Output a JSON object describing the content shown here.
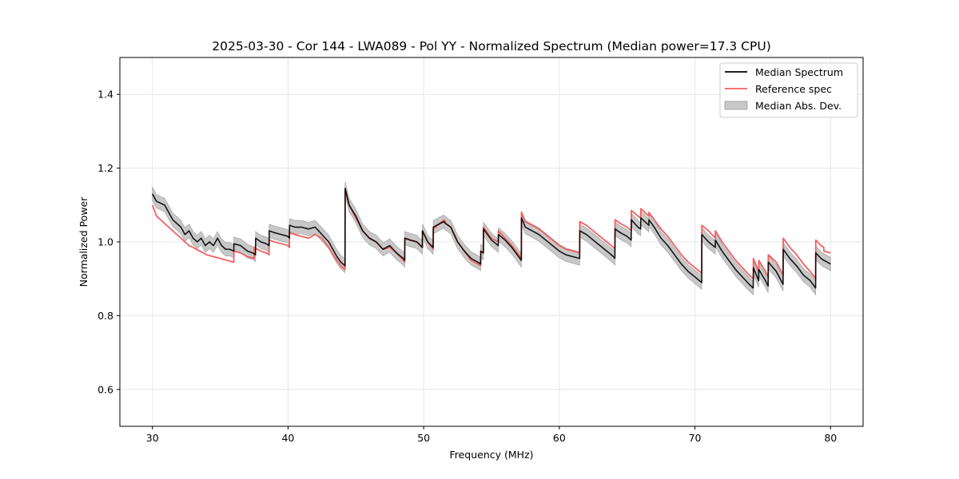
{
  "chart_data": {
    "type": "line",
    "title": "2025-03-30 - Cor 144 - LWA089 - Pol YY - Normalized Spectrum (Median power=17.3 CPU)",
    "xlabel": "Frequency (MHz)",
    "ylabel": "Normalized Power",
    "xlim": [
      27.6,
      82.4
    ],
    "ylim": [
      0.5,
      1.5
    ],
    "xticks": [
      30,
      40,
      50,
      60,
      70,
      80
    ],
    "xtick_labels": [
      "30",
      "40",
      "50",
      "60",
      "70",
      "80"
    ],
    "yticks": [
      0.6,
      0.8,
      1.0,
      1.2,
      1.4
    ],
    "ytick_labels": [
      "0.6",
      "0.8",
      "1.0",
      "1.2",
      "1.4"
    ],
    "grid": true,
    "legend_position": "top-right",
    "legend": [
      "Median Spectrum",
      "Reference spec",
      "Median Abs. Dev."
    ],
    "colors": {
      "median": "#000000",
      "reference": "#f26060",
      "mad_fill": "#c8c8c8",
      "mad_edge": "#a8a8a8",
      "grid": "#e6e6e6"
    },
    "series": [
      {
        "name": "Median Spectrum",
        "x": [
          30.0,
          30.3,
          30.6,
          30.9,
          31.2,
          31.5,
          31.8,
          32.1,
          32.4,
          32.7,
          33.0,
          33.3,
          33.6,
          33.9,
          34.2,
          34.5,
          34.8,
          35.1,
          35.4,
          35.7,
          36.0,
          36.01,
          36.5,
          37.0,
          37.4,
          37.6,
          37.61,
          38.0,
          38.4,
          38.6,
          38.61,
          39.0,
          39.5,
          40.0,
          40.1,
          40.11,
          40.5,
          41.0,
          41.5,
          42.0,
          42.5,
          43.0,
          43.3,
          43.6,
          43.9,
          44.2,
          44.21,
          44.5,
          45.0,
          45.5,
          46.0,
          46.5,
          47.0,
          47.5,
          48.0,
          48.5,
          48.6,
          48.61,
          49.0,
          49.5,
          49.9,
          49.91,
          50.3,
          50.7,
          50.71,
          51.2,
          51.5,
          51.6,
          51.61,
          52.0,
          52.5,
          53.0,
          53.5,
          54.0,
          54.2,
          54.21,
          54.4,
          54.41,
          55.0,
          55.5,
          55.51,
          56.0,
          56.5,
          57.0,
          57.2,
          57.21,
          57.5,
          58.0,
          58.5,
          59.0,
          59.5,
          60.0,
          60.5,
          61.0,
          61.5,
          61.51,
          62.0,
          62.5,
          63.0,
          63.5,
          64.0,
          64.1,
          64.11,
          64.5,
          65.0,
          65.3,
          65.31,
          65.8,
          66.0,
          66.01,
          66.6,
          66.61,
          67.0,
          67.5,
          68.0,
          68.5,
          69.0,
          69.5,
          70.0,
          70.5,
          70.51,
          71.0,
          71.5,
          71.51,
          72.0,
          72.5,
          73.0,
          73.5,
          74.0,
          74.3,
          74.31,
          74.7,
          74.71,
          75.2,
          75.4,
          75.41,
          76.0,
          76.5,
          76.51,
          77.0,
          77.5,
          78.0,
          78.5,
          78.9,
          78.91,
          79.3,
          79.5,
          79.51,
          80.0
        ],
        "values": [
          1.13,
          1.11,
          1.105,
          1.1,
          1.08,
          1.06,
          1.05,
          1.04,
          1.02,
          1.03,
          1.01,
          1.0,
          1.01,
          0.99,
          1.0,
          0.99,
          1.01,
          0.99,
          0.98,
          0.98,
          0.975,
          0.995,
          0.99,
          0.975,
          0.97,
          0.965,
          1.01,
          1.0,
          0.995,
          0.99,
          1.03,
          1.025,
          1.02,
          1.015,
          1.01,
          1.045,
          1.04,
          1.04,
          1.035,
          1.04,
          1.02,
          1.0,
          0.98,
          0.96,
          0.945,
          0.935,
          1.145,
          1.1,
          1.07,
          1.03,
          1.01,
          1.0,
          0.98,
          0.99,
          0.97,
          0.955,
          0.95,
          1.01,
          1.005,
          1.0,
          0.985,
          1.03,
          1.0,
          0.985,
          1.04,
          1.05,
          1.055,
          1.05,
          1.05,
          1.04,
          1.0,
          0.975,
          0.955,
          0.945,
          0.94,
          0.975,
          0.97,
          1.035,
          1.005,
          0.99,
          1.02,
          1.005,
          0.985,
          0.96,
          0.95,
          1.065,
          1.04,
          1.03,
          1.02,
          1.005,
          0.99,
          0.975,
          0.965,
          0.96,
          0.955,
          1.03,
          1.02,
          1.005,
          0.99,
          0.975,
          0.96,
          0.955,
          1.035,
          1.025,
          1.015,
          1.005,
          1.06,
          1.04,
          1.035,
          1.065,
          1.045,
          1.06,
          1.04,
          1.01,
          0.99,
          0.965,
          0.94,
          0.92,
          0.905,
          0.89,
          1.02,
          1.0,
          0.985,
          1.005,
          0.975,
          0.95,
          0.925,
          0.905,
          0.885,
          0.875,
          0.93,
          0.895,
          0.925,
          0.895,
          0.88,
          0.945,
          0.92,
          0.885,
          0.98,
          0.955,
          0.935,
          0.91,
          0.895,
          0.875,
          0.97,
          0.955,
          0.95,
          0.95,
          0.94
        ]
      },
      {
        "name": "Reference spec",
        "x": [
          30.0,
          30.3,
          30.6,
          30.9,
          31.2,
          31.5,
          31.8,
          32.1,
          32.4,
          32.7,
          33.0,
          33.5,
          34.0,
          34.5,
          35.0,
          35.5,
          36.0,
          36.01,
          36.5,
          37.0,
          37.5,
          37.51,
          38.0,
          38.4,
          38.6,
          38.61,
          39.0,
          39.5,
          40.0,
          40.1,
          40.11,
          40.5,
          41.0,
          41.5,
          42.0,
          42.5,
          43.0,
          43.3,
          43.6,
          43.9,
          44.2,
          44.21,
          44.5,
          45.0,
          45.5,
          46.0,
          46.5,
          47.0,
          47.5,
          48.0,
          48.5,
          48.6,
          48.61,
          49.0,
          49.5,
          49.9,
          49.91,
          50.3,
          50.7,
          50.71,
          51.2,
          51.5,
          51.6,
          51.61,
          52.0,
          52.5,
          53.0,
          53.5,
          54.0,
          54.2,
          54.21,
          54.4,
          54.41,
          55.0,
          55.5,
          55.51,
          56.0,
          56.5,
          57.0,
          57.2,
          57.21,
          57.5,
          58.0,
          58.5,
          59.0,
          59.5,
          60.0,
          60.5,
          61.0,
          61.5,
          61.51,
          62.0,
          62.5,
          63.0,
          63.5,
          64.0,
          64.1,
          64.11,
          64.5,
          65.0,
          65.3,
          65.31,
          65.8,
          66.0,
          66.01,
          66.6,
          66.61,
          67.0,
          67.5,
          68.0,
          68.5,
          69.0,
          69.5,
          70.0,
          70.5,
          70.51,
          71.0,
          71.5,
          71.51,
          72.0,
          72.5,
          73.0,
          73.5,
          74.0,
          74.3,
          74.31,
          74.7,
          74.71,
          75.2,
          75.4,
          75.41,
          76.0,
          76.5,
          76.51,
          77.0,
          77.5,
          78.0,
          78.5,
          78.9,
          78.91,
          79.3,
          79.5,
          79.51,
          80.0
        ],
        "values": [
          1.1,
          1.07,
          1.06,
          1.05,
          1.04,
          1.03,
          1.02,
          1.01,
          1.0,
          0.99,
          0.985,
          0.975,
          0.965,
          0.96,
          0.955,
          0.95,
          0.945,
          0.975,
          0.97,
          0.96,
          0.955,
          0.985,
          0.975,
          0.97,
          0.965,
          1.005,
          1.0,
          0.995,
          0.99,
          0.985,
          1.025,
          1.02,
          1.015,
          1.01,
          1.02,
          1.01,
          0.985,
          0.965,
          0.95,
          0.935,
          0.925,
          1.145,
          1.1,
          1.065,
          1.03,
          1.01,
          1.0,
          0.98,
          0.985,
          0.97,
          0.95,
          0.945,
          1.01,
          1.005,
          1.0,
          0.985,
          1.03,
          1.0,
          0.98,
          1.035,
          1.05,
          1.06,
          1.055,
          1.05,
          1.04,
          1.0,
          0.975,
          0.95,
          0.94,
          0.935,
          0.975,
          0.97,
          1.04,
          1.01,
          1.0,
          1.03,
          1.01,
          0.99,
          0.965,
          0.955,
          1.08,
          1.055,
          1.045,
          1.035,
          1.02,
          1.005,
          0.99,
          0.98,
          0.975,
          0.97,
          1.055,
          1.045,
          1.03,
          1.015,
          1.0,
          0.985,
          0.98,
          1.06,
          1.05,
          1.04,
          1.03,
          1.085,
          1.07,
          1.065,
          1.09,
          1.07,
          1.08,
          1.06,
          1.035,
          1.015,
          0.99,
          0.965,
          0.945,
          0.93,
          0.915,
          1.045,
          1.03,
          1.01,
          1.03,
          1.0,
          0.975,
          0.95,
          0.93,
          0.91,
          0.9,
          0.955,
          0.92,
          0.95,
          0.92,
          0.905,
          0.965,
          0.945,
          0.91,
          1.01,
          0.985,
          0.965,
          0.94,
          0.92,
          0.9,
          1.005,
          0.99,
          0.985,
          0.975,
          0.97
        ]
      },
      {
        "name": "Median Abs. Dev.",
        "type": "band",
        "note": "shaded band = Median Spectrum ± half_width",
        "half_width": 0.018
      }
    ]
  }
}
